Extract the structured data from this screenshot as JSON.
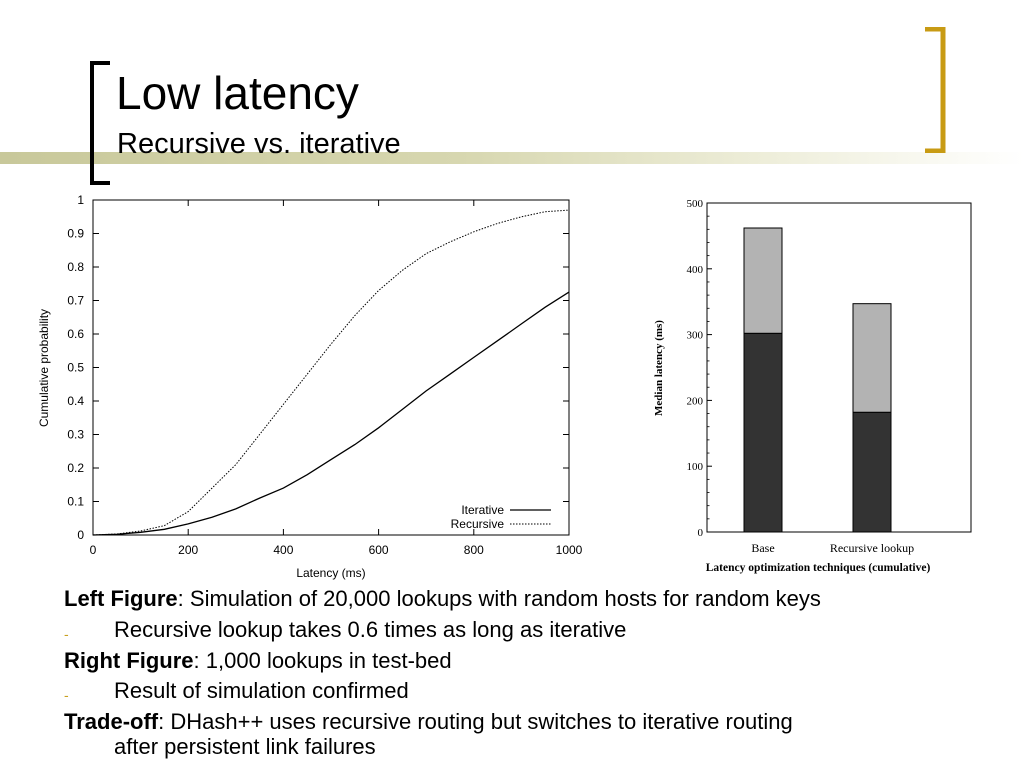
{
  "slide": {
    "title": "Low latency",
    "subtitle": "Recursive vs. iterative"
  },
  "colors": {
    "bracket": "#c89b14",
    "accent_band": "#c8c89a",
    "bar_dark": "#333333",
    "bar_light": "#b3b3b3"
  },
  "chart_data": [
    {
      "type": "line",
      "xlabel": "Latency (ms)",
      "ylabel": "Cumulative probability",
      "xlim": [
        0,
        1000
      ],
      "ylim": [
        0,
        1
      ],
      "x_ticks": [
        "0",
        "200",
        "400",
        "600",
        "800",
        "1000"
      ],
      "y_ticks": [
        "0",
        "0.1",
        "0.2",
        "0.3",
        "0.4",
        "0.5",
        "0.6",
        "0.7",
        "0.8",
        "0.9",
        "1"
      ],
      "legend_position": "bottom-right",
      "series": [
        {
          "name": "Iterative",
          "style": "solid",
          "x": [
            0,
            50,
            100,
            150,
            200,
            250,
            300,
            350,
            400,
            450,
            500,
            550,
            600,
            650,
            700,
            750,
            800,
            850,
            900,
            950,
            1000
          ],
          "values": [
            0,
            0.002,
            0.008,
            0.017,
            0.033,
            0.053,
            0.078,
            0.11,
            0.14,
            0.18,
            0.225,
            0.27,
            0.32,
            0.375,
            0.43,
            0.48,
            0.53,
            0.58,
            0.63,
            0.68,
            0.725
          ]
        },
        {
          "name": "Recursive",
          "style": "dotted",
          "x": [
            0,
            50,
            100,
            150,
            200,
            250,
            300,
            350,
            400,
            450,
            500,
            550,
            600,
            650,
            700,
            750,
            800,
            850,
            900,
            950,
            1000
          ],
          "values": [
            0,
            0.003,
            0.012,
            0.028,
            0.07,
            0.14,
            0.21,
            0.3,
            0.39,
            0.48,
            0.57,
            0.655,
            0.73,
            0.79,
            0.84,
            0.875,
            0.905,
            0.93,
            0.95,
            0.965,
            0.97
          ]
        }
      ]
    },
    {
      "type": "bar",
      "stacked": true,
      "xlabel": "Latency optimization techniques (cumulative)",
      "ylabel": "Median latency (ms)",
      "ylim": [
        0,
        500
      ],
      "y_ticks": [
        "0",
        "100",
        "200",
        "300",
        "400",
        "500"
      ],
      "categories": [
        "Base",
        "Recursive lookup"
      ],
      "segments": [
        {
          "values": [
            302,
            182
          ],
          "color": "#333333"
        },
        {
          "values": [
            160,
            165
          ],
          "color": "#b3b3b3"
        }
      ]
    }
  ],
  "body": {
    "left_figure_label": "Left Figure",
    "left_figure_text": ": Simulation of 20,000 lookups with random hosts for random keys",
    "bullet_marker": "-",
    "bullet_1": "Recursive lookup takes 0.6 times as long as iterative",
    "right_figure_label": "Right Figure",
    "right_figure_text": ": 1,000 lookups in test-bed",
    "bullet_2": "Result of simulation confirmed",
    "tradeoff_label": "Trade-off",
    "tradeoff_text": ": DHash++ uses recursive routing but switches to iterative routing",
    "tradeoff_text_cont": "after persistent link failures"
  }
}
